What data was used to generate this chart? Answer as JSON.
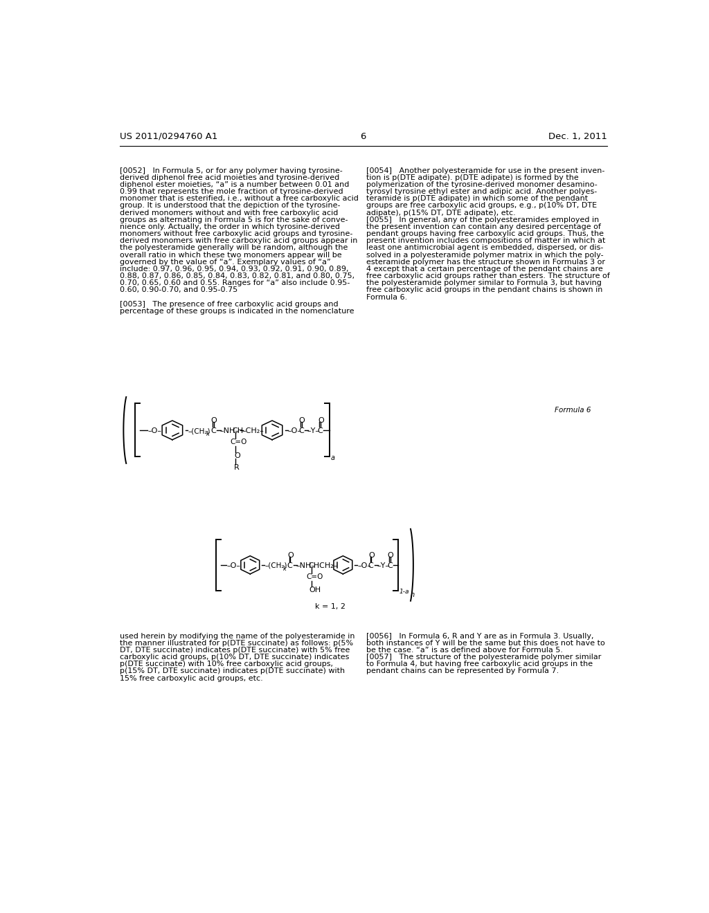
{
  "header_left": "US 2011/0294760 A1",
  "header_right": "Dec. 1, 2011",
  "page_number": "6",
  "background_color": "#ffffff",
  "text_color": "#000000",
  "font_size_body": 8.0,
  "font_size_header": 9.5,
  "col1_lines": [
    "[0052]   In Formula 5, or for any polymer having tyrosine-",
    "derived diphenol free acid moieties and tyrosine-derived",
    "diphenol ester moieties, “a” is a number between 0.01 and",
    "0.99 that represents the mole fraction of tyrosine-derived",
    "monomer that is esterified, i.e., without a free carboxylic acid",
    "group. It is understood that the depiction of the tyrosine-",
    "derived monomers without and with free carboxylic acid",
    "groups as alternating in Formula 5 is for the sake of conve-",
    "nience only. Actually, the order in which tyrosine-derived",
    "monomers without free carboxylic acid groups and tyrosine-",
    "derived monomers with free carboxylic acid groups appear in",
    "the polyesteramide generally will be random, although the",
    "overall ratio in which these two monomers appear will be",
    "governed by the value of “a”. Exemplary values of “a”",
    "include: 0.97, 0.96, 0.95, 0.94, 0.93, 0.92, 0.91, 0.90, 0.89,",
    "0.88, 0.87, 0.86, 0.85, 0.84, 0.83, 0.82, 0.81, and 0.80, 0.75,",
    "0.70, 0.65, 0.60 and 0.55. Ranges for “a” also include 0.95-",
    "0.60, 0.90-0.70, and 0.95-0.75",
    "",
    "[0053]   The presence of free carboxylic acid groups and",
    "percentage of these groups is indicated in the nomenclature"
  ],
  "col2_lines": [
    "[0054]   Another polyesteramide for use in the present inven-",
    "tion is p(DTE adipate). p(DTE adipate) is formed by the",
    "polymerization of the tyrosine-derived monomer desamino-",
    "tyrosyl tyrosine ethyl ester and adipic acid. Another polyes-",
    "teramide is p(DTE adipate) in which some of the pendant",
    "groups are free carboxylic acid groups, e.g., p(10% DT, DTE",
    "adipate), p(15% DT, DTE adipate), etc.",
    "[0055]   In general, any of the polyesteramides employed in",
    "the present invention can contain any desired percentage of",
    "pendant groups having free carboxylic acid groups. Thus, the",
    "present invention includes compositions of matter in which at",
    "least one antimicrobial agent is embedded, dispersed, or dis-",
    "solved in a polyesteramide polymer matrix in which the poly-",
    "esteramide polymer has the structure shown in Formulas 3 or",
    "4 except that a certain percentage of the pendant chains are",
    "free carboxylic acid groups rather than esters. The structure of",
    "the polyesteramide polymer similar to Formula 3, but having",
    "free carboxylic acid groups in the pendant chains is shown in",
    "Formula 6."
  ],
  "col1_bottom_lines": [
    "used herein by modifying the name of the polyesteramide in",
    "the manner illustrated for p(DTE succinate) as follows: p(5%",
    "DT, DTE succinate) indicates p(DTE succinate) with 5% free",
    "carboxylic acid groups, p(10% DT, DTE succinate) indicates",
    "p(DTE succinate) with 10% free carboxylic acid groups,",
    "p(15% DT, DTE succinate) indicates p(DTE succinate) with",
    "15% free carboxylic acid groups, etc."
  ],
  "col2_bottom_lines": [
    "[0056]   In Formula 6, R and Y are as in Formula 3. Usually,",
    "both instances of Y will be the same but this does not have to",
    "be the case. “a” is as defined above for Formula 5.",
    "[0057]   The structure of the polyesteramide polymer similar",
    "to Formula 4, but having free carboxylic acid groups in the",
    "pendant chains can be represented by Formula 7."
  ],
  "formula6_label": "Formula 6",
  "formula7_label": "k = 1, 2"
}
